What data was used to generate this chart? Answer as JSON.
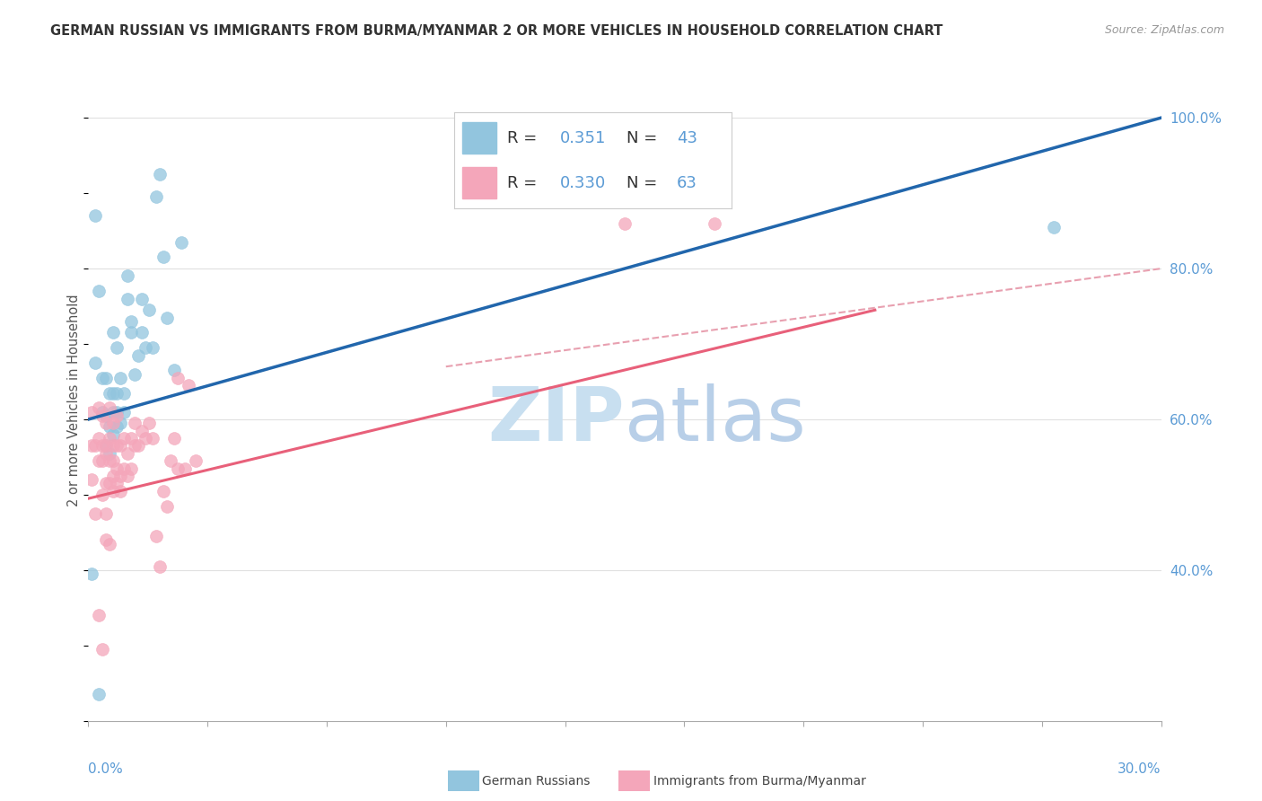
{
  "title": "GERMAN RUSSIAN VS IMMIGRANTS FROM BURMA/MYANMAR 2 OR MORE VEHICLES IN HOUSEHOLD CORRELATION CHART",
  "source": "Source: ZipAtlas.com",
  "ylabel": "2 or more Vehicles in Household",
  "legend_blue_R_val": "0.351",
  "legend_blue_N_val": "43",
  "legend_pink_R_val": "0.330",
  "legend_pink_N_val": "63",
  "legend_label_blue": "German Russians",
  "legend_label_pink": "Immigrants from Burma/Myanmar",
  "blue_color": "#92c5de",
  "pink_color": "#f4a6ba",
  "blue_line_color": "#2166ac",
  "pink_line_color": "#e8607a",
  "dash_line_color": "#e8a0b0",
  "watermark_color": "#c8dff0",
  "label_color": "#5b9bd5",
  "xmin": 0.0,
  "xmax": 0.3,
  "ymin": 0.2,
  "ymax": 1.05,
  "ytick_vals": [
    0.4,
    0.6,
    0.8,
    1.0
  ],
  "ytick_labels": [
    "40.0%",
    "60.0%",
    "80.0%",
    "100.0%"
  ],
  "grid_color": "#e0e0e0",
  "background_color": "#ffffff",
  "blue_line_x0": 0.0,
  "blue_line_y0": 0.6,
  "blue_line_x1": 0.3,
  "blue_line_y1": 1.0,
  "pink_line_x0": 0.0,
  "pink_line_y0": 0.495,
  "pink_line_x1": 0.22,
  "pink_line_y1": 0.745,
  "dash_line_x0": 0.1,
  "dash_line_y0": 0.67,
  "dash_line_x1": 0.3,
  "dash_line_y1": 0.8,
  "blue_pts_x": [
    0.001,
    0.002,
    0.003,
    0.004,
    0.004,
    0.005,
    0.005,
    0.005,
    0.006,
    0.006,
    0.006,
    0.007,
    0.007,
    0.007,
    0.007,
    0.008,
    0.008,
    0.008,
    0.008,
    0.009,
    0.009,
    0.01,
    0.01,
    0.011,
    0.011,
    0.012,
    0.012,
    0.013,
    0.014,
    0.015,
    0.015,
    0.016,
    0.017,
    0.018,
    0.019,
    0.02,
    0.021,
    0.022,
    0.024,
    0.026,
    0.27,
    0.002,
    0.003
  ],
  "blue_pts_y": [
    0.395,
    0.675,
    0.77,
    0.61,
    0.655,
    0.565,
    0.605,
    0.655,
    0.555,
    0.59,
    0.635,
    0.58,
    0.61,
    0.635,
    0.715,
    0.59,
    0.61,
    0.635,
    0.695,
    0.595,
    0.655,
    0.61,
    0.635,
    0.76,
    0.79,
    0.715,
    0.73,
    0.66,
    0.685,
    0.715,
    0.76,
    0.695,
    0.745,
    0.695,
    0.895,
    0.925,
    0.815,
    0.735,
    0.665,
    0.835,
    0.855,
    0.87,
    0.235
  ],
  "pink_pts_x": [
    0.001,
    0.001,
    0.001,
    0.002,
    0.002,
    0.003,
    0.003,
    0.003,
    0.004,
    0.004,
    0.004,
    0.004,
    0.005,
    0.005,
    0.005,
    0.005,
    0.005,
    0.006,
    0.006,
    0.006,
    0.006,
    0.007,
    0.007,
    0.007,
    0.007,
    0.007,
    0.008,
    0.008,
    0.008,
    0.008,
    0.009,
    0.009,
    0.009,
    0.01,
    0.01,
    0.011,
    0.011,
    0.012,
    0.012,
    0.013,
    0.013,
    0.014,
    0.015,
    0.016,
    0.017,
    0.018,
    0.019,
    0.02,
    0.021,
    0.022,
    0.023,
    0.024,
    0.025,
    0.028,
    0.03,
    0.15,
    0.175,
    0.003,
    0.004,
    0.005,
    0.006,
    0.025,
    0.027
  ],
  "pink_pts_y": [
    0.52,
    0.565,
    0.61,
    0.475,
    0.565,
    0.545,
    0.575,
    0.615,
    0.5,
    0.545,
    0.565,
    0.605,
    0.475,
    0.515,
    0.555,
    0.565,
    0.595,
    0.515,
    0.545,
    0.575,
    0.615,
    0.505,
    0.525,
    0.545,
    0.565,
    0.595,
    0.515,
    0.535,
    0.565,
    0.605,
    0.505,
    0.525,
    0.565,
    0.535,
    0.575,
    0.525,
    0.555,
    0.535,
    0.575,
    0.565,
    0.595,
    0.565,
    0.585,
    0.575,
    0.595,
    0.575,
    0.445,
    0.405,
    0.505,
    0.485,
    0.545,
    0.575,
    0.655,
    0.645,
    0.545,
    0.86,
    0.86,
    0.34,
    0.295,
    0.44,
    0.435,
    0.535,
    0.535
  ]
}
